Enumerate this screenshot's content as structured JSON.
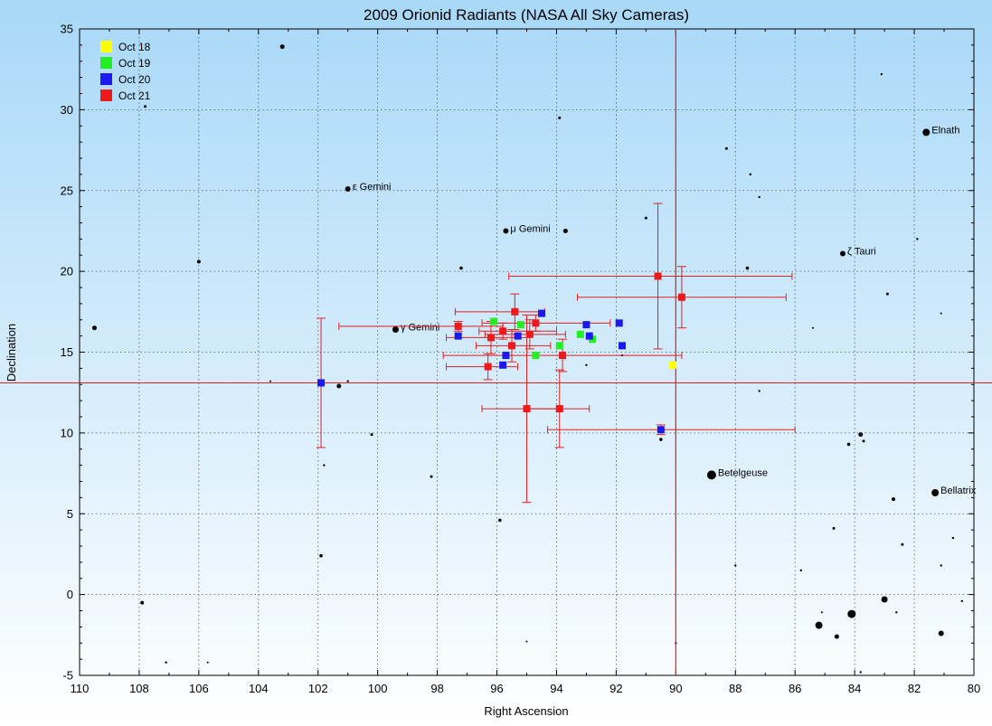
{
  "chart_data": {
    "type": "scatter",
    "title": "2009 Orionid Radiants (NASA All Sky Cameras)",
    "xlabel": "Right Ascension",
    "ylabel": "Declination",
    "xlim": [
      110,
      80
    ],
    "ylim": [
      -5,
      35
    ],
    "x_reversed": true,
    "xticks": [
      110,
      108,
      106,
      104,
      102,
      100,
      98,
      96,
      94,
      92,
      90,
      88,
      86,
      84,
      82,
      80
    ],
    "yticks": [
      -5,
      0,
      5,
      10,
      15,
      20,
      25,
      30,
      35
    ],
    "grid": true,
    "legend_position": "top-left",
    "background": [
      "#a8d8f8",
      "#ffffff"
    ],
    "series": [
      {
        "name": "Oct 18",
        "color": "#ffff00",
        "points": [
          {
            "x": 90.1,
            "y": 14.2
          }
        ]
      },
      {
        "name": "Oct 19",
        "color": "#22ee22",
        "points": [
          {
            "x": 96.1,
            "y": 16.9
          },
          {
            "x": 95.2,
            "y": 16.7
          },
          {
            "x": 94.7,
            "y": 14.8
          },
          {
            "x": 93.9,
            "y": 15.4
          },
          {
            "x": 93.2,
            "y": 16.1
          },
          {
            "x": 92.8,
            "y": 15.8
          }
        ]
      },
      {
        "name": "Oct 20",
        "color": "#1a1aee",
        "points": [
          {
            "x": 101.9,
            "y": 13.1,
            "xerr": [
              102.1,
              101.9
            ],
            "yerr": [
              4.0,
              4.0
            ]
          },
          {
            "x": 97.3,
            "y": 16.0
          },
          {
            "x": 95.8,
            "y": 14.2
          },
          {
            "x": 95.7,
            "y": 14.8
          },
          {
            "x": 95.3,
            "y": 16.0
          },
          {
            "x": 94.5,
            "y": 17.4
          },
          {
            "x": 93.0,
            "y": 16.7
          },
          {
            "x": 92.9,
            "y": 16.0
          },
          {
            "x": 91.9,
            "y": 16.8
          },
          {
            "x": 91.8,
            "y": 15.4
          },
          {
            "x": 90.5,
            "y": 10.2,
            "xerr": [
              3.8,
              4.5
            ],
            "yerr": [
              0.3,
              0.3
            ]
          }
        ]
      },
      {
        "name": "Oct 21",
        "color": "#ee1a1a",
        "points": [
          {
            "x": 97.3,
            "y": 16.6,
            "xerr": [
              4.0,
              1.5
            ],
            "yerr": [
              0.3,
              0.3
            ]
          },
          {
            "x": 96.3,
            "y": 14.1,
            "xerr": [
              1.4,
              1.0
            ],
            "yerr": [
              0.8,
              0.8
            ]
          },
          {
            "x": 96.2,
            "y": 15.9,
            "xerr": [
              1.5,
              1.2
            ],
            "yerr": [
              1.0,
              1.0
            ]
          },
          {
            "x": 95.8,
            "y": 16.3,
            "xerr": [
              0.8,
              1.8
            ],
            "yerr": [
              0.5,
              0.5
            ]
          },
          {
            "x": 95.5,
            "y": 15.4,
            "xerr": [
              1.2,
              1.3
            ],
            "yerr": [
              1.0,
              1.0
            ]
          },
          {
            "x": 95.4,
            "y": 17.5,
            "xerr": [
              2.0,
              1.0
            ],
            "yerr": [
              1.1,
              1.1
            ]
          },
          {
            "x": 95.0,
            "y": 11.5,
            "xerr": [
              1.5,
              1.0
            ],
            "yerr": [
              5.8,
              5.8
            ]
          },
          {
            "x": 94.9,
            "y": 16.1,
            "xerr": [
              1.5,
              1.2
            ],
            "yerr": [
              0.9,
              0.9
            ]
          },
          {
            "x": 94.7,
            "y": 16.8,
            "xerr": [
              1.8,
              2.5
            ],
            "yerr": [
              0.5,
              0.5
            ]
          },
          {
            "x": 93.9,
            "y": 11.5,
            "xerr": [
              1.0,
              1.0
            ],
            "yerr": [
              2.4,
              2.4
            ]
          },
          {
            "x": 93.8,
            "y": 14.8,
            "xerr": [
              4.0,
              4.0
            ],
            "yerr": [
              1.0,
              1.0
            ]
          },
          {
            "x": 90.6,
            "y": 19.7,
            "xerr": [
              5.0,
              4.5
            ],
            "yerr": [
              4.5,
              4.5
            ]
          },
          {
            "x": 89.8,
            "y": 18.4,
            "xerr": [
              3.5,
              3.5
            ],
            "yerr": [
              1.9,
              1.9
            ]
          }
        ]
      }
    ],
    "stars": [
      {
        "x": 88.8,
        "y": 7.4,
        "size": 5,
        "label": "Betelgeuse"
      },
      {
        "x": 81.6,
        "y": 28.6,
        "size": 4,
        "label": "Elnath"
      },
      {
        "x": 81.3,
        "y": 6.3,
        "size": 4,
        "label": "Bellatrix"
      },
      {
        "x": 84.4,
        "y": 21.1,
        "size": 3,
        "label": "ζ Tauri"
      },
      {
        "x": 101.0,
        "y": 25.1,
        "size": 3,
        "label": "ε Gemini"
      },
      {
        "x": 95.7,
        "y": 22.5,
        "size": 3,
        "label": "μ Gemini"
      },
      {
        "x": 99.4,
        "y": 16.4,
        "size": 3.5,
        "label": "γ Gemini"
      },
      {
        "x": 84.1,
        "y": -1.2,
        "size": 4.5,
        "label": ""
      },
      {
        "x": 85.2,
        "y": -1.9,
        "size": 4,
        "label": ""
      },
      {
        "x": 83.0,
        "y": -0.3,
        "size": 3.5,
        "label": ""
      },
      {
        "x": 81.1,
        "y": -2.4,
        "size": 3,
        "label": ""
      },
      {
        "x": 84.6,
        "y": -2.6,
        "size": 2.5,
        "label": ""
      },
      {
        "x": 103.2,
        "y": 33.9,
        "size": 2.5,
        "label": ""
      },
      {
        "x": 93.7,
        "y": 22.5,
        "size": 2.5,
        "label": ""
      },
      {
        "x": 109.5,
        "y": 16.5,
        "size": 2.5,
        "label": ""
      },
      {
        "x": 101.3,
        "y": 12.9,
        "size": 2.5,
        "label": ""
      },
      {
        "x": 83.8,
        "y": 9.9,
        "size": 2.5,
        "label": ""
      },
      {
        "x": 106.0,
        "y": 20.6,
        "size": 2,
        "label": ""
      },
      {
        "x": 107.8,
        "y": 30.2,
        "size": 1.5,
        "label": ""
      },
      {
        "x": 93.9,
        "y": 29.5,
        "size": 1.5,
        "label": ""
      },
      {
        "x": 97.2,
        "y": 20.2,
        "size": 1.8,
        "label": ""
      },
      {
        "x": 91.0,
        "y": 23.3,
        "size": 1.5,
        "label": ""
      },
      {
        "x": 88.3,
        "y": 27.6,
        "size": 1.5,
        "label": ""
      },
      {
        "x": 87.5,
        "y": 26.0,
        "size": 1.2,
        "label": ""
      },
      {
        "x": 87.2,
        "y": 24.6,
        "size": 1.2,
        "label": ""
      },
      {
        "x": 83.1,
        "y": 32.2,
        "size": 1.2,
        "label": ""
      },
      {
        "x": 81.9,
        "y": 22.0,
        "size": 1.2,
        "label": ""
      },
      {
        "x": 82.9,
        "y": 18.6,
        "size": 1.5,
        "label": ""
      },
      {
        "x": 81.1,
        "y": 17.4,
        "size": 1,
        "label": ""
      },
      {
        "x": 85.4,
        "y": 16.5,
        "size": 1,
        "label": ""
      },
      {
        "x": 87.6,
        "y": 20.2,
        "size": 1.8,
        "label": ""
      },
      {
        "x": 84.2,
        "y": 9.3,
        "size": 1.8,
        "label": ""
      },
      {
        "x": 83.7,
        "y": 9.5,
        "size": 1.5,
        "label": ""
      },
      {
        "x": 87.2,
        "y": 12.6,
        "size": 1.2,
        "label": ""
      },
      {
        "x": 82.7,
        "y": 5.9,
        "size": 2,
        "label": ""
      },
      {
        "x": 84.7,
        "y": 4.1,
        "size": 1.5,
        "label": ""
      },
      {
        "x": 82.4,
        "y": 3.1,
        "size": 1.5,
        "label": ""
      },
      {
        "x": 80.7,
        "y": 3.5,
        "size": 1.2,
        "label": ""
      },
      {
        "x": 81.1,
        "y": 1.8,
        "size": 1.2,
        "label": ""
      },
      {
        "x": 85.8,
        "y": 1.5,
        "size": 1.2,
        "label": ""
      },
      {
        "x": 88.0,
        "y": 1.8,
        "size": 1.2,
        "label": ""
      },
      {
        "x": 82.6,
        "y": -1.1,
        "size": 1.2,
        "label": ""
      },
      {
        "x": 80.4,
        "y": -0.4,
        "size": 1.2,
        "label": ""
      },
      {
        "x": 85.1,
        "y": -1.1,
        "size": 1,
        "label": ""
      },
      {
        "x": 83.8,
        "y": -4.8,
        "size": 1.2,
        "label": ""
      },
      {
        "x": 90.0,
        "y": -3.0,
        "size": 1.2,
        "label": ""
      },
      {
        "x": 95.0,
        "y": -2.9,
        "size": 1,
        "label": ""
      },
      {
        "x": 107.9,
        "y": -0.5,
        "size": 2,
        "label": ""
      },
      {
        "x": 107.1,
        "y": -4.2,
        "size": 1.2,
        "label": ""
      },
      {
        "x": 105.7,
        "y": -4.2,
        "size": 1,
        "label": ""
      },
      {
        "x": 101.9,
        "y": 2.4,
        "size": 1.8,
        "label": ""
      },
      {
        "x": 101.8,
        "y": 8.0,
        "size": 1.2,
        "label": ""
      },
      {
        "x": 100.2,
        "y": 9.9,
        "size": 1.5,
        "label": ""
      },
      {
        "x": 98.2,
        "y": 7.3,
        "size": 1.5,
        "label": ""
      },
      {
        "x": 95.9,
        "y": 4.6,
        "size": 1.8,
        "label": ""
      },
      {
        "x": 101.0,
        "y": 13.2,
        "size": 1.2,
        "label": ""
      },
      {
        "x": 103.6,
        "y": 13.2,
        "size": 1,
        "label": ""
      },
      {
        "x": 90.5,
        "y": 9.6,
        "size": 1.8,
        "label": ""
      },
      {
        "x": 91.8,
        "y": 14.8,
        "size": 1.2,
        "label": ""
      },
      {
        "x": 93.0,
        "y": 14.2,
        "size": 1.2,
        "label": ""
      }
    ],
    "reference_line": {
      "x": 90.0,
      "color": "#ee1a1a"
    }
  }
}
